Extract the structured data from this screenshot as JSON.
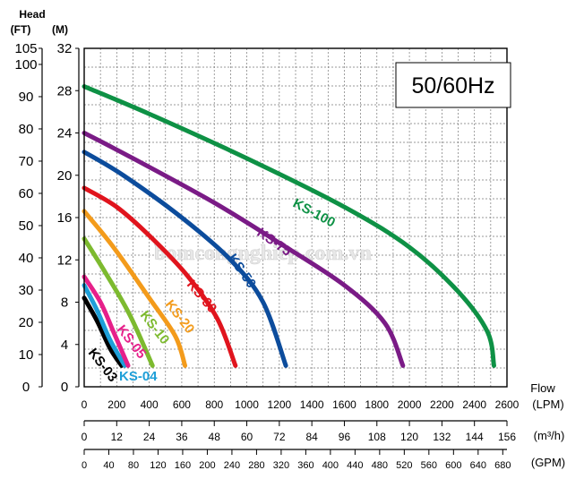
{
  "chart_data": {
    "type": "line",
    "freq_label": "50/60Hz",
    "head_label": "Head",
    "ft_unit": "(FT)",
    "m_unit": "(M)",
    "flow_label": "Flow",
    "lpm_unit": "(LPM)",
    "m3h_unit": "(m³/h)",
    "gpm_unit": "(GPM)",
    "watermark": "bomcongnghiep.com.vn",
    "grid": true,
    "ft_ticks": [
      "105",
      "100",
      "90",
      "80",
      "70",
      "60",
      "50",
      "40",
      "30",
      "20",
      "10",
      "0"
    ],
    "m_ticks": [
      "32",
      "28",
      "24",
      "20",
      "16",
      "12",
      "8",
      "4",
      "0"
    ],
    "lpm_ticks": [
      "0",
      "200",
      "400",
      "600",
      "800",
      "1000",
      "1200",
      "1400",
      "1600",
      "1800",
      "2000",
      "2200",
      "2400",
      "2600"
    ],
    "m3h_ticks": [
      "0",
      "12",
      "24",
      "36",
      "48",
      "60",
      "72",
      "84",
      "96",
      "108",
      "120",
      "132",
      "144",
      "156"
    ],
    "gpm_ticks": [
      "0",
      "40",
      "80",
      "120",
      "160",
      "200",
      "240",
      "280",
      "320",
      "360",
      "400",
      "440",
      "480",
      "520",
      "560",
      "600",
      "640",
      "680"
    ],
    "xlim": [
      0,
      2600
    ],
    "ylim": [
      0,
      32
    ],
    "series": [
      {
        "name": "KS-03",
        "color": "#000000",
        "points": [
          [
            0,
            8.4
          ],
          [
            80,
            6.2
          ],
          [
            160,
            3.6
          ],
          [
            230,
            2.0
          ]
        ]
      },
      {
        "name": "KS-04",
        "color": "#1e9fd8",
        "points": [
          [
            0,
            9.6
          ],
          [
            80,
            7.2
          ],
          [
            160,
            4.4
          ],
          [
            250,
            2.0
          ]
        ]
      },
      {
        "name": "KS-05",
        "color": "#e6208a",
        "points": [
          [
            0,
            10.4
          ],
          [
            100,
            8.0
          ],
          [
            180,
            5.2
          ],
          [
            270,
            2.0
          ]
        ]
      },
      {
        "name": "KS-10",
        "color": "#7dba2f",
        "points": [
          [
            0,
            14.0
          ],
          [
            130,
            10.8
          ],
          [
            280,
            6.8
          ],
          [
            420,
            2.0
          ]
        ]
      },
      {
        "name": "KS-20",
        "color": "#f39b1b",
        "points": [
          [
            0,
            16.6
          ],
          [
            180,
            13.2
          ],
          [
            400,
            8.4
          ],
          [
            560,
            4.8
          ],
          [
            620,
            2.0
          ]
        ]
      },
      {
        "name": "KS-30",
        "color": "#e0141d",
        "points": [
          [
            0,
            18.8
          ],
          [
            200,
            17.0
          ],
          [
            420,
            14.0
          ],
          [
            640,
            10.4
          ],
          [
            820,
            6.4
          ],
          [
            930,
            2.0
          ]
        ]
      },
      {
        "name": "KS-50",
        "color": "#0c4c9c",
        "points": [
          [
            0,
            22.2
          ],
          [
            240,
            20.0
          ],
          [
            600,
            16.0
          ],
          [
            900,
            12.0
          ],
          [
            1100,
            8.0
          ],
          [
            1240,
            2.0
          ]
        ]
      },
      {
        "name": "KS-75",
        "color": "#7a1b86",
        "points": [
          [
            0,
            24.0
          ],
          [
            300,
            21.6
          ],
          [
            800,
            17.4
          ],
          [
            1200,
            13.6
          ],
          [
            1600,
            9.6
          ],
          [
            1850,
            6.0
          ],
          [
            1960,
            2.0
          ]
        ]
      },
      {
        "name": "KS-100",
        "color": "#0e9145",
        "points": [
          [
            0,
            28.4
          ],
          [
            400,
            25.8
          ],
          [
            1000,
            21.6
          ],
          [
            1600,
            17.0
          ],
          [
            2000,
            13.2
          ],
          [
            2300,
            9.0
          ],
          [
            2480,
            5.2
          ],
          [
            2520,
            2.0
          ]
        ]
      }
    ]
  }
}
